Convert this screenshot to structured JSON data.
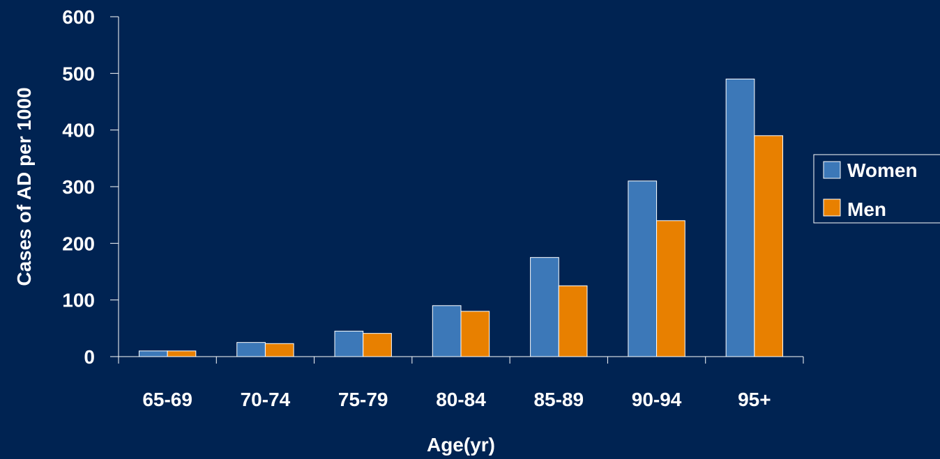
{
  "chart_data": {
    "type": "bar",
    "title": "",
    "xlabel": "Age(yr)",
    "ylabel": "Cases of AD per 1000",
    "categories": [
      "65-69",
      "70-74",
      "75-79",
      "80-84",
      "85-89",
      "90-94",
      "95+"
    ],
    "series": [
      {
        "name": "Women",
        "color": "#3c78b8",
        "values": [
          10,
          25,
          45,
          90,
          175,
          310,
          490
        ]
      },
      {
        "name": "Men",
        "color": "#e88000",
        "values": [
          10,
          23,
          41,
          80,
          125,
          240,
          390
        ]
      }
    ],
    "ylim": [
      0,
      600
    ],
    "yticks": [
      0,
      100,
      200,
      300,
      400,
      500,
      600
    ],
    "grid": false,
    "legend_position": "right",
    "colors": {
      "background": "#002352",
      "axis": "#ffffff",
      "text": "#ffffff"
    }
  }
}
